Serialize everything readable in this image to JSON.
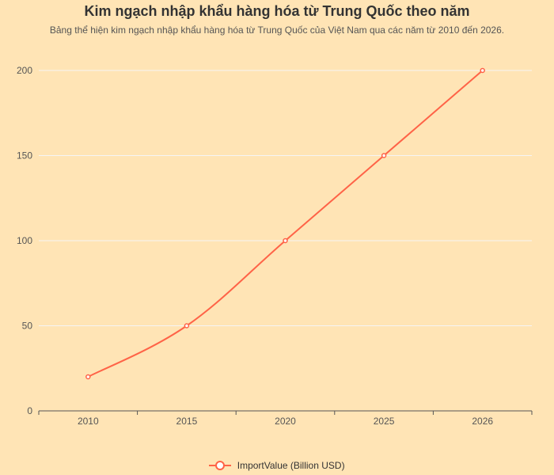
{
  "chart_data": {
    "type": "line",
    "title": "Kim ngạch nhập khẩu hàng hóa từ Trung Quốc theo năm",
    "subtitle": "Bảng thể hiện kim ngạch nhập khẩu hàng hóa từ Trung Quốc của Việt Nam qua các năm từ 2010 đến 2026.",
    "categories": [
      "2010",
      "2015",
      "2020",
      "2025",
      "2026"
    ],
    "series": [
      {
        "name": "ImportValue (Billion USD)",
        "values": [
          20,
          50,
          100,
          150,
          200
        ],
        "color": "#ff6347"
      }
    ],
    "yticks": [
      "0",
      "50",
      "100",
      "150",
      "200"
    ],
    "ylim": [
      0,
      200
    ],
    "grid": true,
    "smooth": true,
    "legend_position": "bottom"
  },
  "colors": {
    "background": "#ffe4b5",
    "line": "#ff6347",
    "grid": "#f5f5f5",
    "axis": "#555555"
  }
}
